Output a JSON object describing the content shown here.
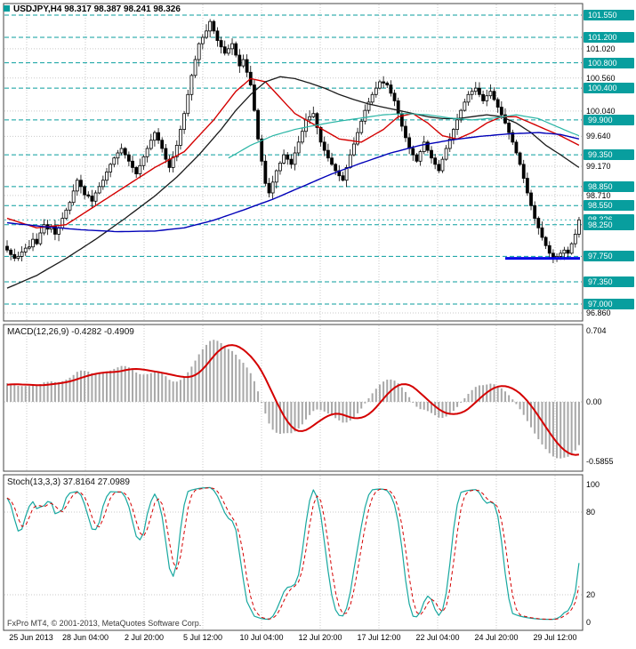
{
  "colors": {
    "background": "#ffffff",
    "grid": "#c9c9c9",
    "border": "#444444",
    "candle": "#000000",
    "bull_fill": "#ffffff",
    "level": "#089e9e",
    "level_box": "#089e9e",
    "macd_hist": "#a8a8a8",
    "macd_signal": "#d40000",
    "stoch_main": "#18a8a0",
    "stoch_signal": "#d40000",
    "trend_blue": "#0000e8"
  },
  "header": {
    "symbol_title": "USDJPY,H4 98.317 98.387 98.241 98.326"
  },
  "macd_pane": {
    "label_text": "MACD(12,26,9) -0.4282 -0.4909",
    "axis_ticks": [
      {
        "text": "0.704",
        "value": 0.704
      },
      {
        "text": "0.00",
        "value": 0
      },
      {
        "text": "-0.5855",
        "value": -0.5855
      }
    ]
  },
  "stoch_pane": {
    "label_text": "Stoch(13,3,3) 37.8164 27.0989",
    "axis_ticks": [
      {
        "text": "100",
        "value": 100
      },
      {
        "text": "80",
        "value": 80
      },
      {
        "text": "20",
        "value": 20
      },
      {
        "text": "0",
        "value": 0
      }
    ]
  },
  "price_axis": {
    "ticks": [
      {
        "text": "101.550",
        "price": 101.55,
        "highlighted": true
      },
      {
        "text": "101.200",
        "price": 101.2,
        "highlighted": true
      },
      {
        "text": "101.020",
        "price": 101.02,
        "highlighted": false
      },
      {
        "text": "100.800",
        "price": 100.8,
        "highlighted": true
      },
      {
        "text": "100.560",
        "price": 100.56,
        "highlighted": false
      },
      {
        "text": "100.400",
        "price": 100.4,
        "highlighted": true
      },
      {
        "text": "100.040",
        "price": 100.04,
        "highlighted": false
      },
      {
        "text": "99.900",
        "price": 99.9,
        "highlighted": true
      },
      {
        "text": "99.640",
        "price": 99.64,
        "highlighted": false
      },
      {
        "text": "99.350",
        "price": 99.35,
        "highlighted": true
      },
      {
        "text": "99.170",
        "price": 99.17,
        "highlighted": false
      },
      {
        "text": "98.850",
        "price": 98.85,
        "highlighted": true
      },
      {
        "text": "98.710",
        "price": 98.71,
        "highlighted": false
      },
      {
        "text": "98.550",
        "price": 98.55,
        "highlighted": true
      },
      {
        "text": "98.326",
        "price": 98.326,
        "highlighted": true
      },
      {
        "text": "98.250",
        "price": 98.25,
        "highlighted": true
      },
      {
        "text": "97.750",
        "price": 97.75,
        "highlighted": true
      },
      {
        "text": "97.350",
        "price": 97.35,
        "highlighted": true
      },
      {
        "text": "97.000",
        "price": 97.0,
        "highlighted": true
      },
      {
        "text": "96.860",
        "price": 96.86,
        "highlighted": false
      }
    ]
  },
  "footer": {
    "copyright": "FxPro MT4, © 2001-2013, MetaQuotes Software Corp."
  },
  "chart_data": {
    "type": "candlestick",
    "symbol": "USDJPY",
    "timeframe": "H4",
    "title": "USDJPY,H4 98.317 98.387 98.241 98.326",
    "current_ohlc": {
      "open": 98.317,
      "high": 98.387,
      "low": 98.241,
      "close": 98.326
    },
    "x_ticks": [
      "25 Jun 2013",
      "28 Jun 04:00",
      "2 Jul 20:00",
      "5 Jul 12:00",
      "10 Jul 04:00",
      "12 Jul 20:00",
      "17 Jul 12:00",
      "22 Jul 04:00",
      "24 Jul 20:00",
      "29 Jul 12:00"
    ],
    "main": {
      "ylim": [
        96.86,
        101.55
      ],
      "closes": [
        97.85,
        97.78,
        97.72,
        97.75,
        97.82,
        97.88,
        97.9,
        98.02,
        97.95,
        98.12,
        98.25,
        98.18,
        98.22,
        98.1,
        98.2,
        98.35,
        98.48,
        98.6,
        98.78,
        98.95,
        98.85,
        98.72,
        98.7,
        98.62,
        98.75,
        98.85,
        98.95,
        99.08,
        99.2,
        99.3,
        99.38,
        99.45,
        99.35,
        99.25,
        99.15,
        99.05,
        99.18,
        99.32,
        99.45,
        99.58,
        99.7,
        99.58,
        99.45,
        99.28,
        99.15,
        99.32,
        99.5,
        99.75,
        100.0,
        100.3,
        100.6,
        100.85,
        101.1,
        101.2,
        101.3,
        101.45,
        101.3,
        101.15,
        101.05,
        100.95,
        101.02,
        101.1,
        100.92,
        100.75,
        100.85,
        100.65,
        100.45,
        100.05,
        99.6,
        99.25,
        98.9,
        98.75,
        98.92,
        99.1,
        99.22,
        99.35,
        99.28,
        99.2,
        99.38,
        99.55,
        99.72,
        99.9,
        99.95,
        100.0,
        99.78,
        99.55,
        99.42,
        99.3,
        99.2,
        99.1,
        99.02,
        98.95,
        99.15,
        99.35,
        99.52,
        99.7,
        99.88,
        100.05,
        100.18,
        100.3,
        100.4,
        100.5,
        100.48,
        100.45,
        100.32,
        100.2,
        100.0,
        99.8,
        99.62,
        99.45,
        99.35,
        99.25,
        99.4,
        99.55,
        99.42,
        99.3,
        99.2,
        99.1,
        99.28,
        99.45,
        99.6,
        99.75,
        99.9,
        100.05,
        100.18,
        100.3,
        100.35,
        100.4,
        100.3,
        100.2,
        100.28,
        100.35,
        100.22,
        100.1,
        99.98,
        99.85,
        99.7,
        99.55,
        99.38,
        99.2,
        98.98,
        98.75,
        98.55,
        98.35,
        98.2,
        98.05,
        97.92,
        97.8,
        97.72,
        97.75,
        97.8,
        97.85,
        97.8,
        97.95,
        98.1,
        98.326
      ],
      "level_lines": [
        101.55,
        101.2,
        100.8,
        100.4,
        99.9,
        99.35,
        98.85,
        98.55,
        98.25,
        97.75,
        97.35,
        97.0
      ],
      "grid_ticks": [
        101.02,
        100.56,
        100.04,
        99.64,
        99.17,
        98.71,
        96.86
      ],
      "current_price": 98.326,
      "moving_averages": [
        {
          "name": "ma-medium-red",
          "color": "#d40000",
          "width": 1.4,
          "points": [
            [
              0,
              98.35
            ],
            [
              8,
              98.2
            ],
            [
              16,
              98.25
            ],
            [
              24,
              98.55
            ],
            [
              32,
              98.85
            ],
            [
              40,
              99.15
            ],
            [
              48,
              99.4
            ],
            [
              56,
              99.9
            ],
            [
              62,
              100.35
            ],
            [
              66,
              100.55
            ],
            [
              70,
              100.5
            ],
            [
              74,
              100.25
            ],
            [
              78,
              100.0
            ],
            [
              84,
              99.8
            ],
            [
              90,
              99.6
            ],
            [
              96,
              99.55
            ],
            [
              102,
              99.75
            ],
            [
              106,
              99.95
            ],
            [
              110,
              100.0
            ],
            [
              114,
              99.85
            ],
            [
              118,
              99.65
            ],
            [
              122,
              99.6
            ],
            [
              126,
              99.7
            ],
            [
              130,
              99.85
            ],
            [
              134,
              99.95
            ],
            [
              138,
              99.95
            ],
            [
              142,
              99.85
            ],
            [
              146,
              99.75
            ],
            [
              150,
              99.65
            ],
            [
              155,
              99.5
            ]
          ]
        },
        {
          "name": "ma-slow-black",
          "color": "#1a1a1a",
          "width": 1.3,
          "points": [
            [
              0,
              97.25
            ],
            [
              8,
              97.45
            ],
            [
              16,
              97.72
            ],
            [
              24,
              98.02
            ],
            [
              32,
              98.35
            ],
            [
              40,
              98.7
            ],
            [
              46,
              99.0
            ],
            [
              52,
              99.35
            ],
            [
              58,
              99.75
            ],
            [
              62,
              100.05
            ],
            [
              66,
              100.3
            ],
            [
              70,
              100.5
            ],
            [
              74,
              100.58
            ],
            [
              78,
              100.55
            ],
            [
              82,
              100.48
            ],
            [
              86,
              100.4
            ],
            [
              90,
              100.3
            ],
            [
              94,
              100.22
            ],
            [
              98,
              100.15
            ],
            [
              102,
              100.1
            ],
            [
              106,
              100.05
            ],
            [
              110,
              100.0
            ],
            [
              114,
              99.95
            ],
            [
              118,
              99.92
            ],
            [
              122,
              99.92
            ],
            [
              126,
              99.95
            ],
            [
              130,
              99.98
            ],
            [
              134,
              99.95
            ],
            [
              138,
              99.85
            ],
            [
              142,
              99.7
            ],
            [
              146,
              99.5
            ],
            [
              150,
              99.35
            ],
            [
              155,
              99.15
            ]
          ]
        },
        {
          "name": "ma-long-blue",
          "color": "#0000b8",
          "width": 1.4,
          "points": [
            [
              0,
              98.28
            ],
            [
              10,
              98.22
            ],
            [
              20,
              98.17
            ],
            [
              30,
              98.14
            ],
            [
              40,
              98.15
            ],
            [
              48,
              98.2
            ],
            [
              56,
              98.32
            ],
            [
              64,
              98.48
            ],
            [
              72,
              98.65
            ],
            [
              80,
              98.85
            ],
            [
              88,
              99.05
            ],
            [
              96,
              99.22
            ],
            [
              104,
              99.38
            ],
            [
              112,
              99.5
            ],
            [
              120,
              99.58
            ],
            [
              128,
              99.64
            ],
            [
              136,
              99.68
            ],
            [
              144,
              99.7
            ],
            [
              150,
              99.67
            ],
            [
              155,
              99.6
            ]
          ]
        },
        {
          "name": "ma-teal",
          "color": "#2ab5a5",
          "width": 1.2,
          "points": [
            [
              60,
              99.3
            ],
            [
              66,
              99.5
            ],
            [
              72,
              99.65
            ],
            [
              78,
              99.75
            ],
            [
              84,
              99.82
            ],
            [
              90,
              99.88
            ],
            [
              96,
              99.93
            ],
            [
              102,
              99.98
            ],
            [
              108,
              100.0
            ],
            [
              114,
              99.98
            ],
            [
              120,
              99.93
            ],
            [
              126,
              99.9
            ],
            [
              132,
              99.93
            ],
            [
              138,
              99.98
            ],
            [
              144,
              99.92
            ],
            [
              148,
              99.82
            ],
            [
              152,
              99.72
            ],
            [
              155,
              99.65
            ]
          ]
        }
      ],
      "support_segment": {
        "price": 97.72,
        "start_index": 135
      }
    },
    "indicators": [
      {
        "type": "MACD",
        "params": [
          12,
          26,
          9
        ],
        "current_values": [
          -0.4282,
          -0.4909
        ],
        "axis_ticks": [
          0.704,
          0.0,
          -0.5855
        ]
      },
      {
        "type": "Stochastic",
        "params": [
          13,
          3,
          3
        ],
        "current_values": [
          37.8164,
          27.0989
        ],
        "ylim": [
          0,
          100
        ],
        "dashed_levels": [
          80,
          20
        ]
      }
    ]
  }
}
